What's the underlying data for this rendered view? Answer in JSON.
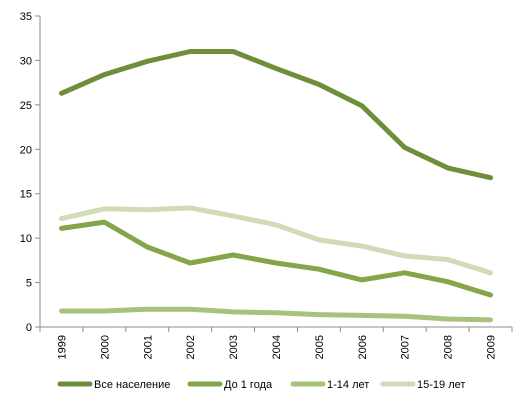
{
  "chart_data": {
    "type": "line",
    "categories": [
      "1999",
      "2000",
      "2001",
      "2002",
      "2003",
      "2004",
      "2005",
      "2006",
      "2007",
      "2008",
      "2009"
    ],
    "ylim": [
      0,
      35
    ],
    "yticks": [
      0,
      5,
      10,
      15,
      20,
      25,
      30,
      35
    ],
    "grid": false,
    "legend": "bottom",
    "series": [
      {
        "name": "Все население",
        "color": "#6e8f3a",
        "values": [
          26.3,
          28.4,
          29.9,
          31.0,
          31.0,
          29.1,
          27.3,
          24.9,
          20.2,
          17.9,
          16.8
        ]
      },
      {
        "name": "До 1 года",
        "color": "#84a548",
        "values": [
          11.1,
          11.8,
          9.0,
          7.2,
          8.1,
          7.2,
          6.5,
          5.3,
          6.1,
          5.1,
          3.6
        ]
      },
      {
        "name": "1-14 лет",
        "color": "#a6c27c",
        "values": [
          1.8,
          1.8,
          2.0,
          2.0,
          1.7,
          1.6,
          1.4,
          1.3,
          1.2,
          0.9,
          0.8
        ]
      },
      {
        "name": "15-19 лет",
        "color": "#cfdcb5",
        "values": [
          12.2,
          13.3,
          13.2,
          13.4,
          12.5,
          11.5,
          9.8,
          9.1,
          8.0,
          7.6,
          6.1
        ]
      }
    ]
  }
}
